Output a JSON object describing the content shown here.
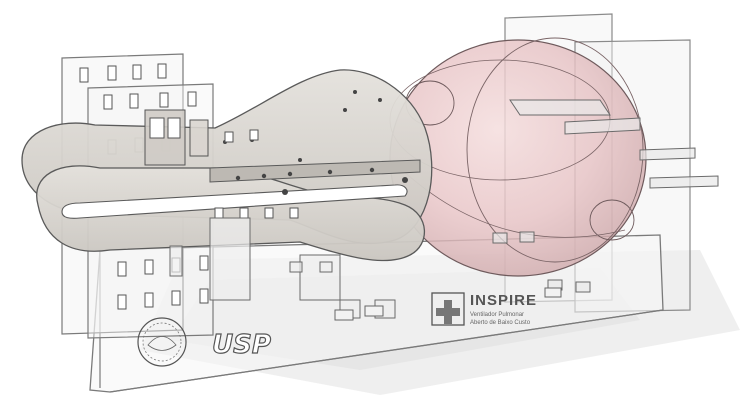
{
  "logos": {
    "university": "USP",
    "project_title": "INSPIRE",
    "project_subtitle_line1": "Ventilador Pulmonar",
    "project_subtitle_line2": "Aberto de Baixo Custo"
  },
  "colors": {
    "panel_stroke": "#7a7a7a",
    "panel_fill": "#f2f2f2",
    "lever_fill": "#d6d3ce",
    "lever_stroke": "#5a5a5a",
    "bag_fill": "#e8c6c8",
    "bag_stroke": "#6e5a5c",
    "shadow": "#e6e6e6",
    "logo_dark": "#555555"
  }
}
